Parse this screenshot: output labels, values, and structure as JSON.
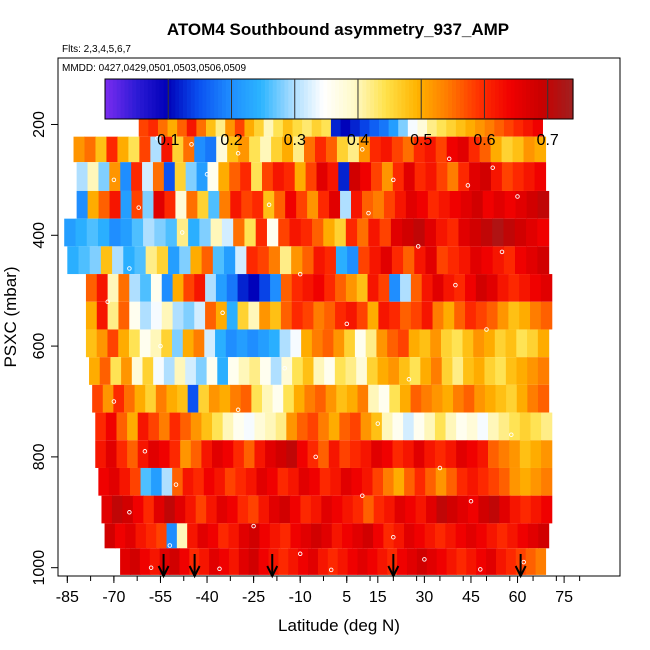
{
  "chart_data": {
    "type": "heatmap",
    "title": "ATOM4 Southbound asymmetry_937_AMP",
    "flights_label": "Flts: 2,3,4,5,6,7",
    "dates_label": "MMDD: 0427,0429,0501,0503,0506,0509",
    "xlabel": "Latitude (deg N)",
    "ylabel": "PSXC (mbar)",
    "xlim": [
      -88,
      93
    ],
    "ylim": [
      1015,
      80
    ],
    "x_ticks": [
      -85,
      -70,
      -55,
      -40,
      -25,
      -10,
      5,
      15,
      30,
      45,
      60,
      75
    ],
    "x_tick_labels": [
      "-85",
      "-70",
      "-55",
      "-40",
      "-25",
      "-10",
      "5",
      "15",
      "30",
      "45",
      "60",
      "75"
    ],
    "y_ticks": [
      200,
      400,
      600,
      800,
      1000
    ],
    "y_tick_labels": [
      "200",
      "400",
      "600",
      "800",
      "1000"
    ],
    "colorbar": {
      "min": 0.0,
      "max": 0.74,
      "ticks": [
        0.1,
        0.2,
        0.3,
        0.4,
        0.5,
        0.6,
        0.7
      ],
      "tick_labels": [
        "0.1",
        "0.2",
        "0.3",
        "0.4",
        "0.5",
        "0.6",
        "0.7"
      ],
      "colors": [
        "#7b2cf0",
        "#2d1bd6",
        "#0000b8",
        "#0a50f0",
        "#1e8cff",
        "#2cb4ff",
        "#a8dcff",
        "#ffffff",
        "#fffac8",
        "#ffe14a",
        "#ffb400",
        "#ff7a00",
        "#ff3000",
        "#f00000",
        "#c80000",
        "#a02020"
      ]
    },
    "bands": [
      {
        "p_top": 173,
        "p_bot": 222,
        "lat_start": -62,
        "lat_end": 68,
        "values": [
          0.58,
          0.6,
          0.55,
          0.5,
          0.56,
          0.62,
          0.55,
          0.48,
          0.42,
          0.52,
          0.58,
          0.5,
          0.46,
          0.4,
          0.44,
          0.48,
          0.45,
          0.43,
          0.46,
          0.44,
          0.12,
          0.1,
          0.12,
          0.14,
          0.16,
          0.18,
          0.22,
          0.28,
          0.34,
          0.38,
          0.42,
          0.44,
          0.46,
          0.48,
          0.5,
          0.52,
          0.54,
          0.56,
          0.58,
          0.6,
          0.62,
          0.64
        ]
      },
      {
        "p_top": 222,
        "p_bot": 268,
        "lat_start": -83,
        "lat_end": 69,
        "values": [
          0.52,
          0.55,
          0.48,
          0.6,
          0.5,
          0.44,
          0.58,
          0.3,
          0.62,
          0.46,
          0.55,
          0.2,
          0.18,
          0.38,
          0.48,
          0.52,
          0.44,
          0.4,
          0.46,
          0.5,
          0.42,
          0.55,
          0.6,
          0.56,
          0.46,
          0.42,
          0.52,
          0.6,
          0.62,
          0.58,
          0.55,
          0.6,
          0.62,
          0.58,
          0.64,
          0.66,
          0.6,
          0.56,
          0.5,
          0.46,
          0.48,
          0.52,
          0.5
        ]
      },
      {
        "p_top": 268,
        "p_bot": 320,
        "lat_start": -82,
        "lat_end": 69,
        "values": [
          0.3,
          0.4,
          0.28,
          0.52,
          0.2,
          0.6,
          0.32,
          0.55,
          0.15,
          0.46,
          0.28,
          0.22,
          0.36,
          0.5,
          0.56,
          0.6,
          0.44,
          0.58,
          0.62,
          0.6,
          0.5,
          0.58,
          0.66,
          0.62,
          0.12,
          0.68,
          0.64,
          0.58,
          0.52,
          0.6,
          0.66,
          0.6,
          0.62,
          0.58,
          0.54,
          0.6,
          0.66,
          0.68,
          0.62,
          0.58,
          0.6,
          0.62,
          0.64
        ]
      },
      {
        "p_top": 320,
        "p_bot": 370,
        "lat_start": -82,
        "lat_end": 70,
        "values": [
          0.2,
          0.5,
          0.56,
          0.62,
          0.22,
          0.58,
          0.28,
          0.66,
          0.6,
          0.38,
          0.55,
          0.46,
          0.26,
          0.54,
          0.62,
          0.58,
          0.6,
          0.48,
          0.56,
          0.64,
          0.58,
          0.52,
          0.6,
          0.66,
          0.3,
          0.62,
          0.56,
          0.54,
          0.58,
          0.62,
          0.66,
          0.64,
          0.6,
          0.62,
          0.64,
          0.66,
          0.68,
          0.64,
          0.66,
          0.64,
          0.66,
          0.68,
          0.7
        ]
      },
      {
        "p_top": 370,
        "p_bot": 420,
        "lat_start": -86,
        "lat_end": 70,
        "values": [
          0.22,
          0.24,
          0.26,
          0.24,
          0.2,
          0.22,
          0.26,
          0.3,
          0.28,
          0.26,
          0.42,
          0.24,
          0.28,
          0.4,
          0.32,
          0.55,
          0.44,
          0.6,
          0.36,
          0.58,
          0.62,
          0.6,
          0.56,
          0.5,
          0.46,
          0.6,
          0.55,
          0.62,
          0.58,
          0.66,
          0.68,
          0.7,
          0.66,
          0.62,
          0.6,
          0.66,
          0.68,
          0.7,
          0.72,
          0.7,
          0.68,
          0.66,
          0.64
        ]
      },
      {
        "p_top": 420,
        "p_bot": 470,
        "lat_start": -85,
        "lat_end": 70,
        "values": [
          0.24,
          0.26,
          0.28,
          0.48,
          0.3,
          0.24,
          0.26,
          0.42,
          0.46,
          0.22,
          0.28,
          0.5,
          0.56,
          0.26,
          0.22,
          0.32,
          0.6,
          0.58,
          0.54,
          0.42,
          0.52,
          0.56,
          0.62,
          0.6,
          0.24,
          0.2,
          0.58,
          0.62,
          0.66,
          0.6,
          0.56,
          0.62,
          0.66,
          0.58,
          0.6,
          0.62,
          0.66,
          0.64,
          0.62,
          0.6,
          0.64,
          0.66,
          0.68
        ]
      },
      {
        "p_top": 470,
        "p_bot": 520,
        "lat_start": -79,
        "lat_end": 71,
        "values": [
          0.56,
          0.62,
          0.4,
          0.55,
          0.3,
          0.26,
          0.36,
          0.2,
          0.5,
          0.58,
          0.62,
          0.3,
          0.22,
          0.18,
          0.12,
          0.1,
          0.14,
          0.2,
          0.56,
          0.6,
          0.62,
          0.64,
          0.6,
          0.56,
          0.52,
          0.48,
          0.62,
          0.58,
          0.2,
          0.3,
          0.56,
          0.62,
          0.66,
          0.62,
          0.6,
          0.64,
          0.68,
          0.66,
          0.62,
          0.6,
          0.62,
          0.64,
          0.66
        ]
      },
      {
        "p_top": 520,
        "p_bot": 570,
        "lat_start": -79,
        "lat_end": 71,
        "values": [
          0.5,
          0.62,
          0.42,
          0.56,
          0.36,
          0.3,
          0.34,
          0.4,
          0.3,
          0.28,
          0.32,
          0.56,
          0.5,
          0.24,
          0.46,
          0.4,
          0.52,
          0.48,
          0.56,
          0.6,
          0.58,
          0.54,
          0.56,
          0.6,
          0.62,
          0.58,
          0.5,
          0.62,
          0.6,
          0.56,
          0.58,
          0.62,
          0.54,
          0.5,
          0.56,
          0.6,
          0.58,
          0.56,
          0.52,
          0.48,
          0.5,
          0.54,
          0.56
        ]
      },
      {
        "p_top": 570,
        "p_bot": 620,
        "lat_start": -79,
        "lat_end": 70,
        "values": [
          0.48,
          0.52,
          0.58,
          0.5,
          0.44,
          0.36,
          0.4,
          0.46,
          0.28,
          0.5,
          0.54,
          0.32,
          0.24,
          0.2,
          0.22,
          0.2,
          0.22,
          0.24,
          0.3,
          0.34,
          0.5,
          0.54,
          0.56,
          0.52,
          0.46,
          0.36,
          0.42,
          0.52,
          0.56,
          0.58,
          0.5,
          0.48,
          0.52,
          0.46,
          0.44,
          0.48,
          0.52,
          0.5,
          0.46,
          0.48,
          0.44,
          0.46,
          0.5
        ]
      },
      {
        "p_top": 620,
        "p_bot": 670,
        "lat_start": -78,
        "lat_end": 70,
        "values": [
          0.5,
          0.56,
          0.44,
          0.52,
          0.38,
          0.46,
          0.34,
          0.3,
          0.4,
          0.32,
          0.28,
          0.36,
          0.24,
          0.36,
          0.4,
          0.42,
          0.36,
          0.3,
          0.38,
          0.44,
          0.48,
          0.4,
          0.36,
          0.44,
          0.42,
          0.38,
          0.46,
          0.5,
          0.52,
          0.48,
          0.44,
          0.5,
          0.54,
          0.46,
          0.42,
          0.48,
          0.5,
          0.46,
          0.44,
          0.48,
          0.5,
          0.52,
          0.54
        ]
      },
      {
        "p_top": 670,
        "p_bot": 720,
        "lat_start": -77,
        "lat_end": 70,
        "values": [
          0.58,
          0.52,
          0.6,
          0.55,
          0.5,
          0.46,
          0.54,
          0.5,
          0.48,
          0.15,
          0.46,
          0.52,
          0.5,
          0.54,
          0.56,
          0.44,
          0.4,
          0.36,
          0.44,
          0.5,
          0.54,
          0.56,
          0.52,
          0.48,
          0.5,
          0.54,
          0.4,
          0.36,
          0.44,
          0.5,
          0.56,
          0.54,
          0.52,
          0.5,
          0.54,
          0.56,
          0.52,
          0.5,
          0.48,
          0.46,
          0.5,
          0.54,
          0.56
        ]
      },
      {
        "p_top": 720,
        "p_bot": 770,
        "lat_start": -76,
        "lat_end": 71,
        "values": [
          0.6,
          0.64,
          0.56,
          0.5,
          0.62,
          0.58,
          0.54,
          0.6,
          0.56,
          0.52,
          0.48,
          0.44,
          0.4,
          0.36,
          0.34,
          0.38,
          0.4,
          0.42,
          0.52,
          0.56,
          0.58,
          0.54,
          0.5,
          0.56,
          0.58,
          0.52,
          0.48,
          0.4,
          0.36,
          0.32,
          0.36,
          0.4,
          0.44,
          0.4,
          0.36,
          0.38,
          0.34,
          0.4,
          0.42,
          0.44,
          0.46,
          0.44,
          0.42
        ]
      },
      {
        "p_top": 770,
        "p_bot": 820,
        "lat_start": -76,
        "lat_end": 71,
        "values": [
          0.62,
          0.66,
          0.6,
          0.56,
          0.62,
          0.66,
          0.64,
          0.6,
          0.52,
          0.56,
          0.62,
          0.66,
          0.64,
          0.6,
          0.56,
          0.62,
          0.66,
          0.68,
          0.7,
          0.64,
          0.6,
          0.56,
          0.62,
          0.58,
          0.6,
          0.62,
          0.66,
          0.64,
          0.6,
          0.62,
          0.66,
          0.62,
          0.6,
          0.62,
          0.66,
          0.64,
          0.62,
          0.56,
          0.54,
          0.52,
          0.48,
          0.5,
          0.52
        ]
      },
      {
        "p_top": 820,
        "p_bot": 870,
        "lat_start": -75,
        "lat_end": 71,
        "values": [
          0.64,
          0.66,
          0.62,
          0.58,
          0.26,
          0.22,
          0.3,
          0.56,
          0.62,
          0.6,
          0.64,
          0.62,
          0.58,
          0.6,
          0.62,
          0.66,
          0.64,
          0.6,
          0.62,
          0.66,
          0.64,
          0.6,
          0.62,
          0.66,
          0.64,
          0.62,
          0.58,
          0.54,
          0.5,
          0.56,
          0.6,
          0.56,
          0.52,
          0.56,
          0.6,
          0.62,
          0.6,
          0.58,
          0.56,
          0.52,
          0.5,
          0.52,
          0.54
        ]
      },
      {
        "p_top": 870,
        "p_bot": 920,
        "lat_start": -74,
        "lat_end": 71,
        "values": [
          0.66,
          0.7,
          0.68,
          0.64,
          0.6,
          0.66,
          0.7,
          0.66,
          0.62,
          0.58,
          0.62,
          0.66,
          0.64,
          0.6,
          0.58,
          0.62,
          0.66,
          0.68,
          0.64,
          0.6,
          0.62,
          0.66,
          0.64,
          0.62,
          0.6,
          0.56,
          0.6,
          0.62,
          0.66,
          0.64,
          0.62,
          0.66,
          0.7,
          0.68,
          0.66,
          0.64,
          0.68,
          0.7,
          0.66,
          0.62,
          0.6,
          0.62,
          0.64
        ]
      },
      {
        "p_top": 920,
        "p_bot": 965,
        "lat_start": -73,
        "lat_end": 70,
        "values": [
          0.68,
          0.64,
          0.66,
          0.62,
          0.6,
          0.58,
          0.2,
          0.4,
          0.62,
          0.66,
          0.64,
          0.6,
          0.62,
          0.66,
          0.68,
          0.64,
          0.62,
          0.6,
          0.64,
          0.66,
          0.68,
          0.66,
          0.62,
          0.64,
          0.66,
          0.68,
          0.64,
          0.6,
          0.62,
          0.66,
          0.64,
          0.62,
          0.6,
          0.62,
          0.64,
          0.66,
          0.64,
          0.62,
          0.6,
          0.62,
          0.64,
          0.66,
          0.68
        ]
      },
      {
        "p_top": 965,
        "p_bot": 1013,
        "lat_start": -68,
        "lat_end": 69,
        "values": [
          0.66,
          0.68,
          0.64,
          0.62,
          0.66,
          0.68,
          0.64,
          0.6,
          0.62,
          0.66,
          0.64,
          0.62,
          0.66,
          0.68,
          0.64,
          0.62,
          0.6,
          0.62,
          0.64,
          0.66,
          0.62,
          0.6,
          0.62,
          0.64,
          0.66,
          0.64,
          0.62,
          0.6,
          0.64,
          0.66,
          0.68,
          0.66,
          0.64,
          0.62,
          0.6,
          0.62,
          0.64,
          0.66,
          0.62,
          0.6,
          0.58,
          0.56,
          0.54
        ]
      }
    ],
    "sample_markers": [
      {
        "lat": -56,
        "p": 225
      },
      {
        "lat": -45,
        "p": 236
      },
      {
        "lat": -30,
        "p": 252
      },
      {
        "lat": 10,
        "p": 245
      },
      {
        "lat": 38,
        "p": 262
      },
      {
        "lat": 52,
        "p": 278
      },
      {
        "lat": -70,
        "p": 300
      },
      {
        "lat": -40,
        "p": 290
      },
      {
        "lat": 20,
        "p": 300
      },
      {
        "lat": 44,
        "p": 310
      },
      {
        "lat": 60,
        "p": 330
      },
      {
        "lat": -62,
        "p": 350
      },
      {
        "lat": -20,
        "p": 345
      },
      {
        "lat": 12,
        "p": 360
      },
      {
        "lat": -48,
        "p": 395
      },
      {
        "lat": 28,
        "p": 420
      },
      {
        "lat": 55,
        "p": 430
      },
      {
        "lat": -65,
        "p": 460
      },
      {
        "lat": -10,
        "p": 470
      },
      {
        "lat": 40,
        "p": 490
      },
      {
        "lat": -72,
        "p": 520
      },
      {
        "lat": -35,
        "p": 540
      },
      {
        "lat": 5,
        "p": 560
      },
      {
        "lat": 50,
        "p": 570
      },
      {
        "lat": -55,
        "p": 600
      },
      {
        "lat": -15,
        "p": 640
      },
      {
        "lat": 25,
        "p": 660
      },
      {
        "lat": -70,
        "p": 700
      },
      {
        "lat": -30,
        "p": 715
      },
      {
        "lat": 15,
        "p": 740
      },
      {
        "lat": 58,
        "p": 760
      },
      {
        "lat": -60,
        "p": 790
      },
      {
        "lat": -5,
        "p": 800
      },
      {
        "lat": 35,
        "p": 820
      },
      {
        "lat": -50,
        "p": 850
      },
      {
        "lat": 10,
        "p": 870
      },
      {
        "lat": 45,
        "p": 880
      },
      {
        "lat": -65,
        "p": 900
      },
      {
        "lat": -25,
        "p": 925
      },
      {
        "lat": 20,
        "p": 945
      },
      {
        "lat": -52,
        "p": 960
      },
      {
        "lat": -10,
        "p": 975
      },
      {
        "lat": 30,
        "p": 985
      },
      {
        "lat": 62,
        "p": 990
      },
      {
        "lat": -58,
        "p": 1000
      },
      {
        "lat": -36,
        "p": 1002
      },
      {
        "lat": 0,
        "p": 1004
      },
      {
        "lat": 48,
        "p": 1003
      }
    ],
    "arrows_lat": [
      -54,
      -44,
      -19,
      20,
      61
    ]
  }
}
